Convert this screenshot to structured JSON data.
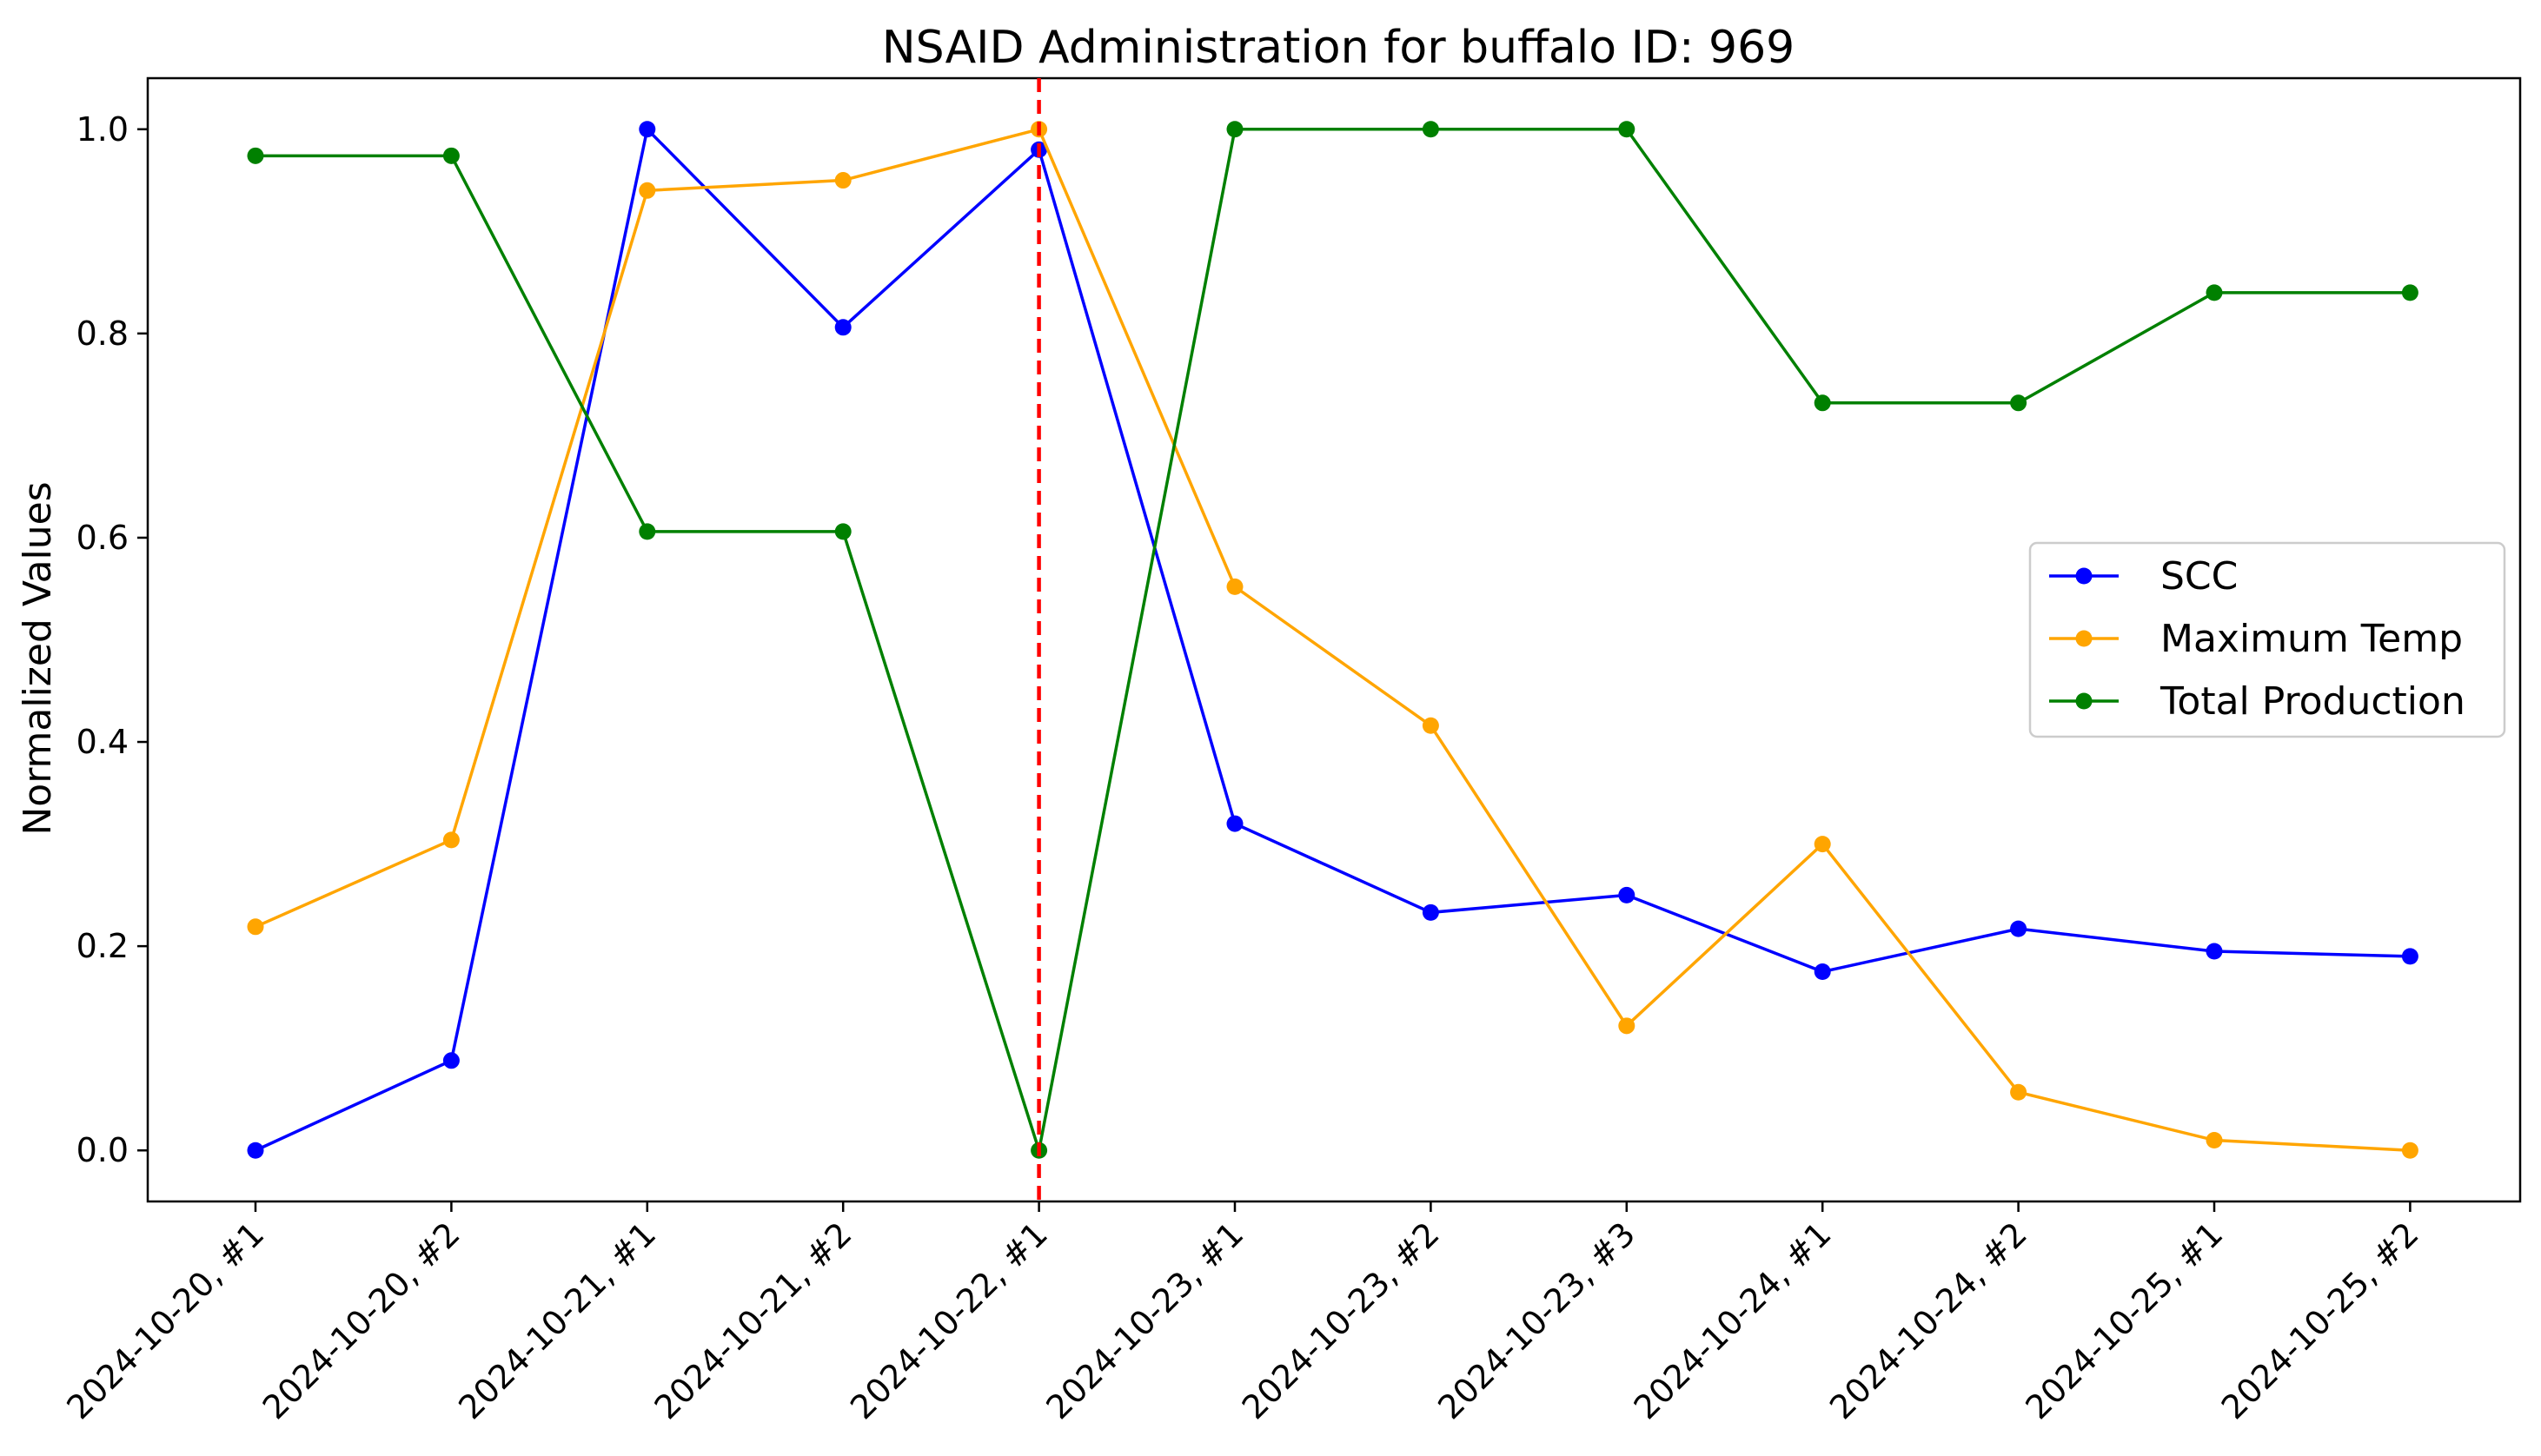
{
  "chart_data": {
    "type": "line",
    "title": "NSAID Administration for buffalo ID: 969",
    "xlabel": "",
    "ylabel": "Normalized Values",
    "categories": [
      "2024-10-20, #1",
      "2024-10-20, #2",
      "2024-10-21, #1",
      "2024-10-21, #2",
      "2024-10-22, #1",
      "2024-10-23, #1",
      "2024-10-23, #2",
      "2024-10-23, #3",
      "2024-10-24, #1",
      "2024-10-24, #2",
      "2024-10-25, #1",
      "2024-10-25, #2"
    ],
    "yticks": [
      "0.0",
      "0.2",
      "0.4",
      "0.6",
      "0.8",
      "1.0"
    ],
    "ylim": [
      -0.05,
      1.05
    ],
    "grid": false,
    "legend_position": "center-right",
    "marker_line": {
      "category": "2024-10-22, #1",
      "color": "#ff0000",
      "style": "dashed"
    },
    "series": [
      {
        "name": "SCC",
        "color": "#0000ff",
        "values": [
          0.0,
          0.088,
          1.0,
          0.806,
          0.98,
          0.32,
          0.233,
          0.25,
          0.175,
          0.217,
          0.195,
          0.19
        ]
      },
      {
        "name": "Maximum Temp",
        "color": "#ffa500",
        "values": [
          0.219,
          0.304,
          0.94,
          0.95,
          1.0,
          0.552,
          0.416,
          0.122,
          0.3,
          0.057,
          0.01,
          0.0
        ]
      },
      {
        "name": "Total Production",
        "color": "#008000",
        "values": [
          0.974,
          0.974,
          0.606,
          0.606,
          0.0,
          1.0,
          1.0,
          1.0,
          0.732,
          0.732,
          0.84,
          0.84
        ]
      }
    ]
  }
}
